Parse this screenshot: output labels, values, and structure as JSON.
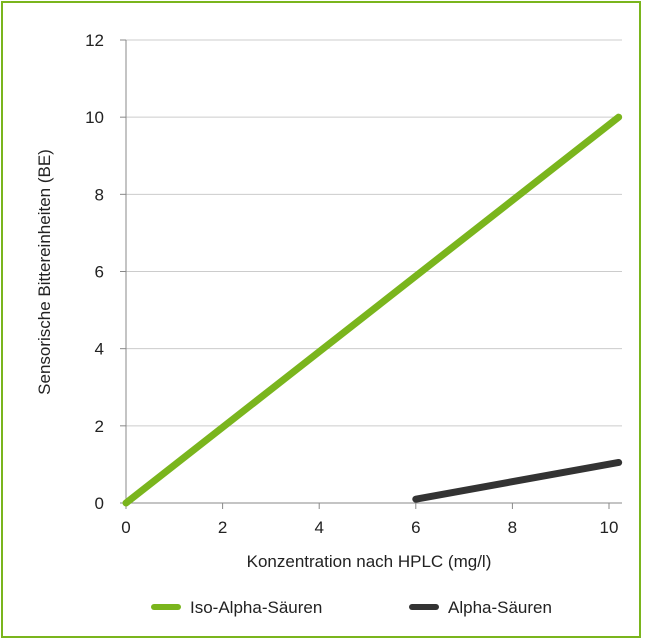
{
  "chart_data": {
    "type": "line",
    "title": "",
    "xlabel": "Konzentration nach HPLC (mg/l)",
    "ylabel": "Sensorische Bittereinheiten (BE)",
    "xlim": [
      0,
      10.3
    ],
    "ylim": [
      0,
      12
    ],
    "x_ticks": [
      "0",
      "2",
      "4",
      "6",
      "8",
      "10"
    ],
    "y_ticks": [
      "0",
      "2",
      "4",
      "6",
      "8",
      "10",
      "12"
    ],
    "grid": "horizontal",
    "legend_position": "bottom",
    "series": [
      {
        "name": "Iso-Alpha-Säuren",
        "color": "#7ab51d",
        "x": [
          0,
          10.2
        ],
        "y": [
          0,
          10
        ]
      },
      {
        "name": "Alpha-Säuren",
        "color": "#333333",
        "x": [
          6,
          10.2
        ],
        "y": [
          0.1,
          1.05
        ]
      }
    ]
  }
}
